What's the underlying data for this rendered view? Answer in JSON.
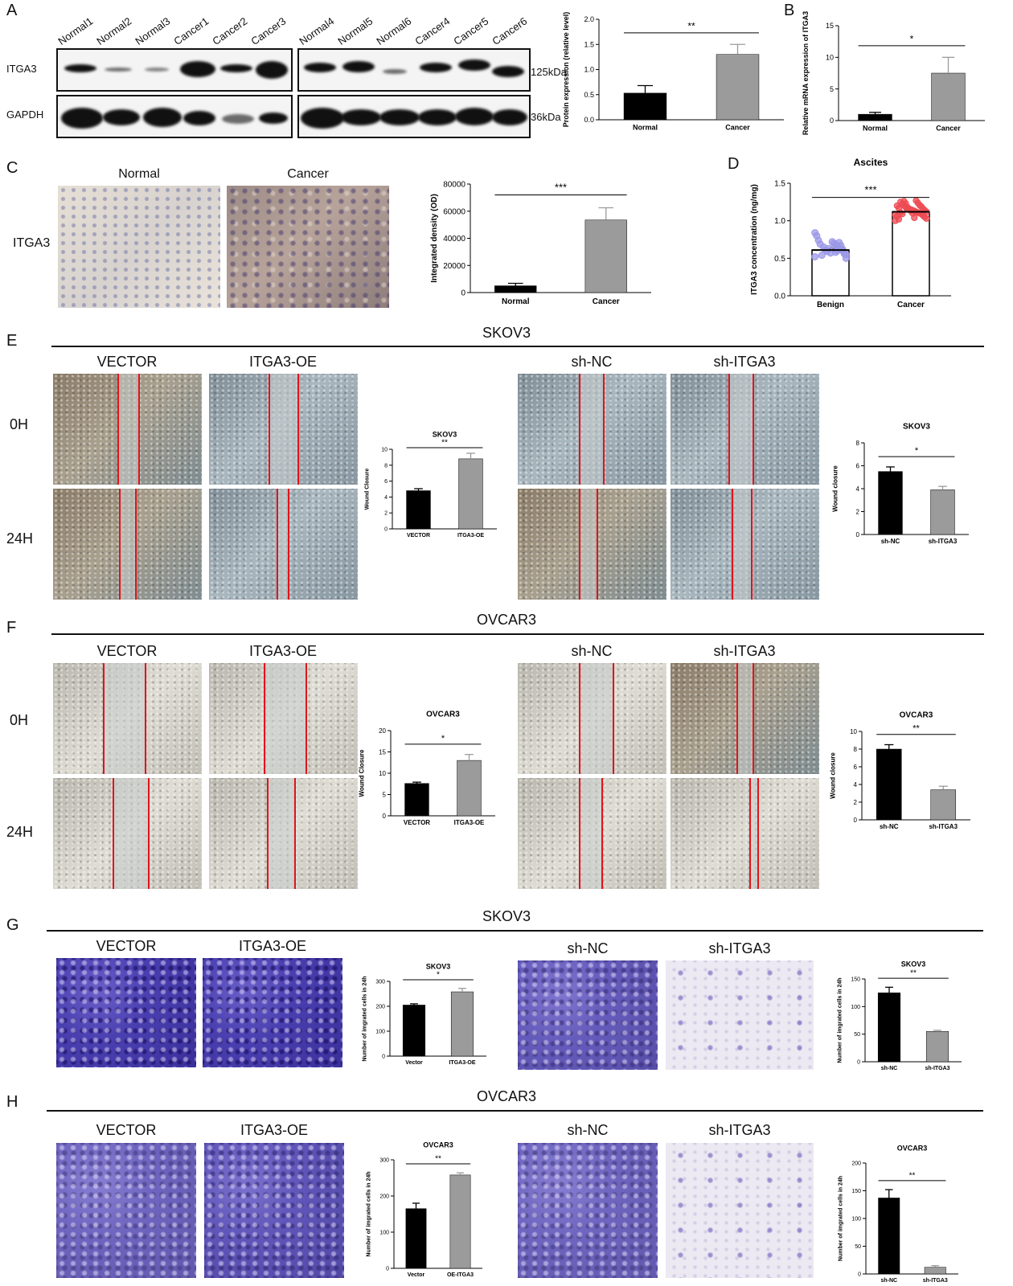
{
  "panels": {
    "A": "A",
    "B": "B",
    "C": "C",
    "D": "D",
    "E": "E",
    "F": "F",
    "G": "G",
    "H": "H"
  },
  "blot": {
    "lanes_left": [
      "Normal1",
      "Normal2",
      "Normal3",
      "Cancer1",
      "Cancer2",
      "Cancer3"
    ],
    "lanes_right": [
      "Normal4",
      "Normal5",
      "Normal6",
      "Cancer4",
      "Cancer5",
      "Cancer6"
    ],
    "row1": "ITGA3",
    "row2": "GAPDH",
    "size1": "125kDa",
    "size2": "36kDa"
  },
  "panelC": {
    "normal": "Normal",
    "cancer": "Cancer",
    "row": "ITGA3"
  },
  "sections": {
    "E": "SKOV3",
    "F": "OVCAR3",
    "G": "SKOV3",
    "H": "OVCAR3"
  },
  "conditions": {
    "vector": "VECTOR",
    "oe": "ITGA3-OE",
    "shnc": "sh-NC",
    "sh": "sh-ITGA3",
    "t0": "0H",
    "t24": "24H"
  },
  "chart_data": [
    {
      "id": "A-protein",
      "type": "bar",
      "categories": [
        "Normal",
        "Cancer"
      ],
      "values": [
        0.53,
        1.3
      ],
      "errors": [
        0.15,
        0.2
      ],
      "colors": [
        "#000000",
        "#9b9b9b"
      ],
      "ylabel": "Protein expression (relative level)",
      "ylim": [
        0,
        2.0
      ],
      "yticks": [
        "0.0",
        "0.5",
        "1.0",
        "1.5",
        "2.0"
      ],
      "sig": "**"
    },
    {
      "id": "B-mrna",
      "type": "bar",
      "categories": [
        "Normal",
        "Cancer"
      ],
      "values": [
        1.0,
        7.5
      ],
      "errors": [
        0.3,
        2.5
      ],
      "colors": [
        "#000000",
        "#9b9b9b"
      ],
      "ylabel": "Relative mRNA expression of ITGA3",
      "ylim": [
        0,
        15
      ],
      "yticks": [
        "0",
        "5",
        "10",
        "15"
      ],
      "sig": "*"
    },
    {
      "id": "C-ihc",
      "type": "bar",
      "categories": [
        "Normal",
        "Cancer"
      ],
      "values": [
        5000,
        53500
      ],
      "errors": [
        1800,
        9000
      ],
      "colors": [
        "#000000",
        "#9b9b9b"
      ],
      "ylabel": "Integrated density (OD)",
      "ylim": [
        0,
        80000
      ],
      "yticks": [
        "0",
        "20000",
        "40000",
        "60000",
        "80000"
      ],
      "sig": "***"
    },
    {
      "id": "D-ascites",
      "type": "bar+scatter",
      "title": "Ascites",
      "categories": [
        "Benign",
        "Cancer"
      ],
      "values": [
        0.61,
        1.12
      ],
      "errors": [
        0.02,
        0.02
      ],
      "colors": [
        "#9b98e8",
        "#ee4a52"
      ],
      "ylabel": "ITGA3 concentration (ng/mg)",
      "ylim": [
        0,
        1.5
      ],
      "yticks": [
        "0.0",
        "0.5",
        "1.0",
        "1.5"
      ],
      "sig": "***",
      "points": [
        [
          0.52,
          0.55,
          0.58,
          0.6,
          0.62,
          0.64,
          0.66,
          0.68,
          0.7,
          0.72,
          0.57,
          0.63,
          0.59,
          0.61,
          0.65,
          0.54,
          0.69,
          0.74,
          0.8,
          0.84,
          0.5,
          0.56,
          0.62,
          0.67,
          0.71,
          0.6,
          0.58,
          0.63
        ],
        [
          1.0,
          1.03,
          1.05,
          1.07,
          1.09,
          1.1,
          1.11,
          1.12,
          1.13,
          1.14,
          1.15,
          1.16,
          1.17,
          1.18,
          1.2,
          1.22,
          1.25,
          1.02,
          1.06,
          1.08,
          1.12,
          1.14,
          1.16,
          1.19,
          1.21,
          1.24,
          1.27,
          1.04,
          1.1,
          1.13,
          1.15,
          1.18,
          1.23,
          1.26,
          1.09,
          1.11,
          1.17,
          1.2
        ]
      ]
    },
    {
      "id": "E-oe",
      "type": "bar",
      "title": "SKOV3",
      "categories": [
        "VECTOR",
        "ITGA3-OE"
      ],
      "values": [
        4.8,
        8.8
      ],
      "errors": [
        0.25,
        0.7
      ],
      "colors": [
        "#000000",
        "#9b9b9b"
      ],
      "ylabel": "Wound Closure",
      "ylim": [
        0,
        10
      ],
      "yticks": [
        "0",
        "2",
        "4",
        "6",
        "8",
        "10"
      ],
      "sig": "**"
    },
    {
      "id": "E-sh",
      "type": "bar",
      "title": "SKOV3",
      "categories": [
        "sh-NC",
        "sh-ITGA3"
      ],
      "values": [
        5.5,
        3.9
      ],
      "errors": [
        0.4,
        0.3
      ],
      "colors": [
        "#000000",
        "#9b9b9b"
      ],
      "ylabel": "Wound closure",
      "ylim": [
        0,
        8
      ],
      "yticks": [
        "0",
        "2",
        "4",
        "6",
        "8"
      ],
      "sig": "*"
    },
    {
      "id": "F-oe",
      "type": "bar",
      "title": "OVCAR3",
      "categories": [
        "VECTOR",
        "ITGA3-OE"
      ],
      "values": [
        7.6,
        13.0
      ],
      "errors": [
        0.3,
        1.4
      ],
      "colors": [
        "#000000",
        "#9b9b9b"
      ],
      "ylabel": "Wound Closure",
      "ylim": [
        0,
        20
      ],
      "yticks": [
        "0",
        "5",
        "10",
        "15",
        "20"
      ],
      "sig": "*"
    },
    {
      "id": "F-sh",
      "type": "bar",
      "title": "OVCAR3",
      "categories": [
        "sh-NC",
        "sh-ITGA3"
      ],
      "values": [
        8.0,
        3.4
      ],
      "errors": [
        0.5,
        0.4
      ],
      "colors": [
        "#000000",
        "#9b9b9b"
      ],
      "ylabel": "Wound closure",
      "ylim": [
        0,
        10
      ],
      "yticks": [
        "0",
        "2",
        "4",
        "6",
        "8",
        "10"
      ],
      "sig": "**"
    },
    {
      "id": "G-oe",
      "type": "bar",
      "title": "SKOV3",
      "categories": [
        "Vector",
        "ITGA3-OE"
      ],
      "values": [
        205,
        258
      ],
      "errors": [
        5,
        14
      ],
      "colors": [
        "#000000",
        "#9b9b9b"
      ],
      "ylabel": "Number of imgrated cells in 24h",
      "ylim": [
        0,
        300
      ],
      "yticks": [
        "0",
        "100",
        "200",
        "300"
      ],
      "sig": "*"
    },
    {
      "id": "G-sh",
      "type": "bar",
      "title": "SKOV3",
      "categories": [
        "sh-NC",
        "sh-ITGA3"
      ],
      "values": [
        125,
        55
      ],
      "errors": [
        10,
        2
      ],
      "colors": [
        "#000000",
        "#9b9b9b"
      ],
      "ylabel": "Number of imgrated cells in 24h",
      "ylim": [
        0,
        150
      ],
      "yticks": [
        "0",
        "50",
        "100",
        "150"
      ],
      "sig": "**"
    },
    {
      "id": "H-oe",
      "type": "bar",
      "title": "OVCAR3",
      "categories": [
        "Vector",
        "OE-ITGA3"
      ],
      "values": [
        165,
        258
      ],
      "errors": [
        15,
        6
      ],
      "colors": [
        "#000000",
        "#9b9b9b"
      ],
      "ylabel": "Number of imgrated cells in 24h",
      "ylim": [
        0,
        300
      ],
      "yticks": [
        "0",
        "100",
        "200",
        "300"
      ],
      "sig": "**"
    },
    {
      "id": "H-sh",
      "type": "bar",
      "title": "OVCAR3",
      "categories": [
        "sh-NC",
        "sh-ITGA3"
      ],
      "values": [
        137,
        12
      ],
      "errors": [
        15,
        3
      ],
      "colors": [
        "#000000",
        "#9b9b9b"
      ],
      "ylabel": "Number of imgrated cells in 24h",
      "ylim": [
        0,
        200
      ],
      "yticks": [
        "0",
        "50",
        "100",
        "150",
        "200"
      ],
      "sig": "**"
    }
  ]
}
